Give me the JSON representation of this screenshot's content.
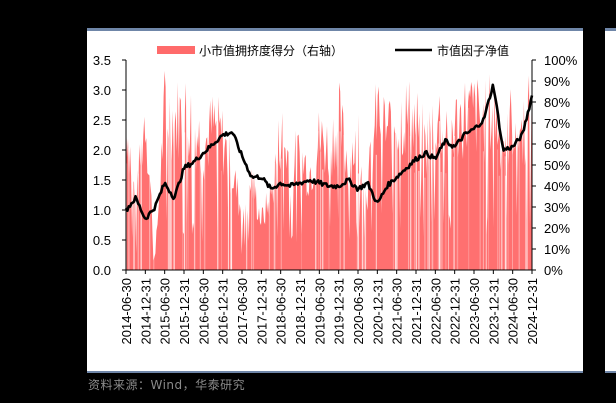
{
  "chart_data": {
    "type": "line+area",
    "title": "",
    "legend": [
      {
        "label": "小市值拥挤度得分（右轴）",
        "type": "area",
        "color": "#ff5f5f",
        "axis": "right"
      },
      {
        "label": "市值因子净值",
        "type": "line",
        "color": "#000000",
        "axis": "left"
      }
    ],
    "legend_position": "top",
    "xlabel": "",
    "ylabel_left": "",
    "ylabel_right": "",
    "ylim_left": [
      0.0,
      3.5
    ],
    "ylim_right": [
      0,
      100
    ],
    "y_ticks_left": [
      "0.0",
      "0.5",
      "1.0",
      "1.5",
      "2.0",
      "2.5",
      "3.0",
      "3.5"
    ],
    "y_ticks_right": [
      "0%",
      "10%",
      "20%",
      "30%",
      "40%",
      "50%",
      "60%",
      "70%",
      "80%",
      "90%",
      "100%"
    ],
    "x_ticks": [
      "2014-06-30",
      "2014-12-31",
      "2015-06-30",
      "2015-12-31",
      "2016-06-30",
      "2016-12-31",
      "2017-06-30",
      "2017-12-31",
      "2018-06-30",
      "2018-12-31",
      "2019-06-30",
      "2019-12-31",
      "2020-06-30",
      "2020-12-31",
      "2021-06-30",
      "2021-12-31",
      "2022-06-30",
      "2022-12-31",
      "2023-06-30",
      "2023-12-31",
      "2024-06-30",
      "2024-12-31"
    ],
    "grid": false,
    "series": [
      {
        "name": "市值因子净值",
        "axis": "left",
        "x": [
          "2014-06-30",
          "2014-09-30",
          "2014-12-31",
          "2015-03-31",
          "2015-06-30",
          "2015-09-30",
          "2015-12-31",
          "2016-03-31",
          "2016-06-30",
          "2016-09-30",
          "2016-12-31",
          "2017-03-31",
          "2017-06-30",
          "2017-09-30",
          "2017-12-31",
          "2018-03-31",
          "2018-06-30",
          "2018-09-30",
          "2018-12-31",
          "2019-03-31",
          "2019-06-30",
          "2019-09-30",
          "2019-12-31",
          "2020-03-31",
          "2020-06-30",
          "2020-09-30",
          "2020-12-31",
          "2021-03-31",
          "2021-06-30",
          "2021-09-30",
          "2021-12-31",
          "2022-03-31",
          "2022-06-30",
          "2022-09-30",
          "2022-12-31",
          "2023-03-31",
          "2023-06-30",
          "2023-09-30",
          "2023-12-31",
          "2024-03-31",
          "2024-06-30",
          "2024-09-30",
          "2024-12-31"
        ],
        "values": [
          1.0,
          1.2,
          0.85,
          1.05,
          1.45,
          1.2,
          1.7,
          1.8,
          1.95,
          2.1,
          2.25,
          2.3,
          1.9,
          1.55,
          1.55,
          1.35,
          1.45,
          1.4,
          1.45,
          1.5,
          1.45,
          1.4,
          1.4,
          1.5,
          1.35,
          1.45,
          1.1,
          1.4,
          1.55,
          1.7,
          1.85,
          1.95,
          1.85,
          2.15,
          2.05,
          2.25,
          2.35,
          2.5,
          3.1,
          2.0,
          2.05,
          2.25,
          2.9
        ]
      },
      {
        "name": "小市值拥挤度得分（右轴）",
        "axis": "right",
        "x": [
          "2014-06-30",
          "2014-09-30",
          "2014-12-31",
          "2015-03-31",
          "2015-06-30",
          "2015-09-30",
          "2015-12-31",
          "2016-03-31",
          "2016-06-30",
          "2016-09-30",
          "2016-12-31",
          "2017-03-31",
          "2017-06-30",
          "2017-09-30",
          "2017-12-31",
          "2018-03-31",
          "2018-06-30",
          "2018-09-30",
          "2018-12-31",
          "2019-03-31",
          "2019-06-30",
          "2019-09-30",
          "2019-12-31",
          "2020-03-31",
          "2020-06-30",
          "2020-09-30",
          "2020-12-31",
          "2021-03-31",
          "2021-06-30",
          "2021-09-30",
          "2021-12-31",
          "2022-03-31",
          "2022-06-30",
          "2022-09-30",
          "2022-12-31",
          "2023-03-31",
          "2023-06-30",
          "2023-09-30",
          "2023-12-31",
          "2024-03-31",
          "2024-06-30",
          "2024-09-30",
          "2024-12-31"
        ],
        "values": [
          95,
          40,
          98,
          5,
          99,
          92,
          97,
          90,
          75,
          88,
          80,
          60,
          35,
          55,
          30,
          45,
          85,
          65,
          70,
          60,
          80,
          75,
          92,
          65,
          85,
          50,
          98,
          85,
          92,
          95,
          90,
          75,
          95,
          90,
          88,
          95,
          96,
          90,
          99,
          80,
          92,
          85,
          99
        ]
      }
    ]
  },
  "source_note": "资料来源：Wind，华泰研究"
}
